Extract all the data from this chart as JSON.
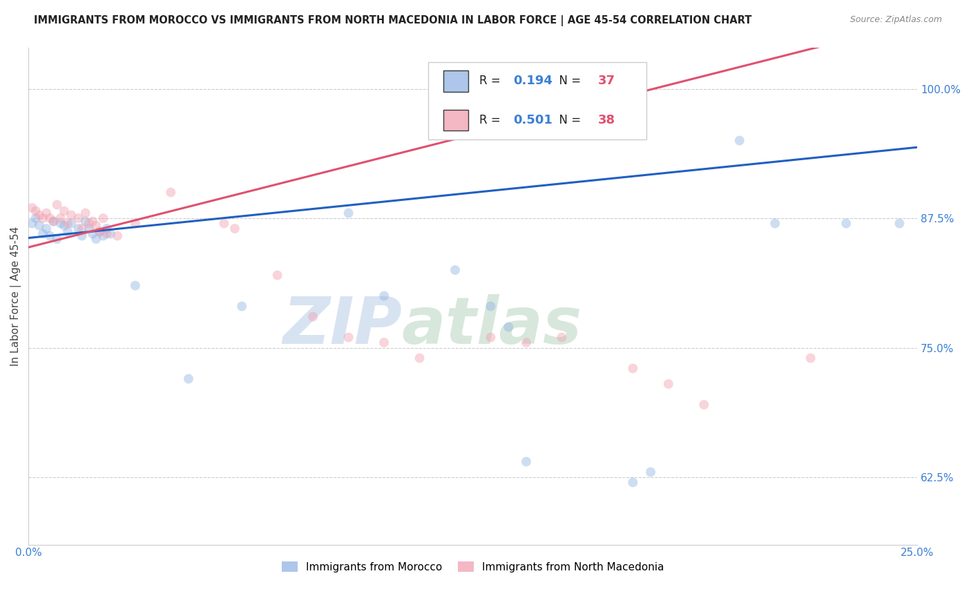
{
  "title": "IMMIGRANTS FROM MOROCCO VS IMMIGRANTS FROM NORTH MACEDONIA IN LABOR FORCE | AGE 45-54 CORRELATION CHART",
  "source": "Source: ZipAtlas.com",
  "ylabel": "In Labor Force | Age 45-54",
  "yticks": [
    0.625,
    0.75,
    0.875,
    1.0
  ],
  "ytick_labels": [
    "62.5%",
    "75.0%",
    "87.5%",
    "100.0%"
  ],
  "xlim": [
    0.0,
    0.25
  ],
  "ylim": [
    0.56,
    1.04
  ],
  "morocco_color": "#92b4e3",
  "north_macedonia_color": "#f0a0b0",
  "morocco_line_color": "#2060c0",
  "north_macedonia_line_color": "#e05070",
  "morocco_R": "0.194",
  "morocco_N": "37",
  "north_macedonia_R": "0.501",
  "north_macedonia_N": "38",
  "watermark_zip": "ZIP",
  "watermark_atlas": "atlas",
  "legend_R_color": "#3a7fd5",
  "legend_N_color": "#e05070",
  "dot_size": 100,
  "dot_alpha": 0.45,
  "line_width": 2.2,
  "morocco_scatter_x": [
    0.001,
    0.002,
    0.003,
    0.004,
    0.005,
    0.006,
    0.007,
    0.008,
    0.009,
    0.01,
    0.011,
    0.012,
    0.014,
    0.015,
    0.016,
    0.017,
    0.018,
    0.019,
    0.02,
    0.021,
    0.022,
    0.023,
    0.03,
    0.045,
    0.06,
    0.09,
    0.1,
    0.12,
    0.13,
    0.135,
    0.14,
    0.17,
    0.175,
    0.2,
    0.21,
    0.23,
    0.245
  ],
  "morocco_scatter_y": [
    0.87,
    0.875,
    0.868,
    0.86,
    0.865,
    0.858,
    0.872,
    0.855,
    0.87,
    0.868,
    0.862,
    0.87,
    0.865,
    0.858,
    0.872,
    0.865,
    0.86,
    0.855,
    0.862,
    0.858,
    0.865,
    0.86,
    0.81,
    0.72,
    0.79,
    0.88,
    0.8,
    0.825,
    0.79,
    0.77,
    0.64,
    0.62,
    0.63,
    0.95,
    0.87,
    0.87,
    0.87
  ],
  "north_macedonia_scatter_x": [
    0.001,
    0.002,
    0.003,
    0.004,
    0.005,
    0.006,
    0.007,
    0.008,
    0.009,
    0.01,
    0.011,
    0.012,
    0.014,
    0.015,
    0.016,
    0.017,
    0.018,
    0.019,
    0.02,
    0.021,
    0.022,
    0.025,
    0.03,
    0.04,
    0.055,
    0.058,
    0.07,
    0.08,
    0.09,
    0.1,
    0.11,
    0.13,
    0.14,
    0.15,
    0.17,
    0.18,
    0.19,
    0.22
  ],
  "north_macedonia_scatter_y": [
    0.885,
    0.882,
    0.878,
    0.875,
    0.88,
    0.875,
    0.872,
    0.888,
    0.875,
    0.882,
    0.87,
    0.878,
    0.875,
    0.865,
    0.88,
    0.87,
    0.872,
    0.868,
    0.862,
    0.875,
    0.86,
    0.858,
    0.87,
    0.9,
    0.87,
    0.865,
    0.82,
    0.78,
    0.76,
    0.755,
    0.74,
    0.76,
    0.755,
    0.76,
    0.73,
    0.715,
    0.695,
    0.74
  ]
}
